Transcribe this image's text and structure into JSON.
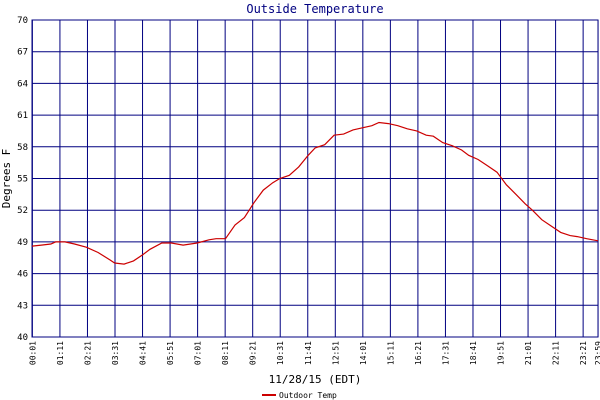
{
  "chart_data": {
    "type": "line",
    "title": "Outside Temperature",
    "ylabel": "Degrees F",
    "xlabel": "11/28/15 (EDT)",
    "ylim": [
      40,
      70
    ],
    "yticks": [
      40,
      43,
      46,
      49,
      52,
      55,
      58,
      61,
      64,
      67,
      70
    ],
    "xticks": [
      "00:01",
      "01:11",
      "02:21",
      "03:31",
      "04:41",
      "05:51",
      "07:01",
      "08:11",
      "09:21",
      "10:31",
      "11:41",
      "12:51",
      "14:01",
      "15:11",
      "16:21",
      "17:31",
      "18:41",
      "19:51",
      "21:01",
      "22:11",
      "23:21"
    ],
    "xtick_last": "23:59",
    "grid": true,
    "legend_position": "bottom",
    "colors": {
      "series": "#cc0000",
      "grid": "#000080",
      "title": "#000080"
    },
    "series": [
      {
        "name": "Outdoor Temp",
        "x": [
          0.0,
          0.4,
          0.8,
          1.0,
          1.4,
          1.8,
          2.3,
          2.8,
          3.3,
          3.5,
          3.9,
          4.3,
          4.7,
          5.0,
          5.5,
          5.9,
          6.4,
          7.0,
          7.5,
          7.8,
          8.2,
          8.6,
          9.0,
          9.4,
          9.8,
          10.2,
          10.5,
          10.9,
          11.3,
          11.7,
          12.0,
          12.4,
          12.8,
          13.2,
          13.6,
          14.0,
          14.4,
          14.7,
          15.1,
          15.5,
          15.9,
          16.3,
          16.7,
          17.0,
          17.4,
          17.8,
          18.2,
          18.5,
          18.9,
          19.3,
          19.7,
          20.1,
          20.5,
          20.9,
          21.2,
          21.6,
          22.0,
          22.4,
          22.8,
          23.1,
          23.5,
          23.98
        ],
        "y": [
          48.6,
          48.7,
          48.8,
          49.0,
          49.0,
          48.8,
          48.5,
          48.0,
          47.3,
          47.0,
          46.9,
          47.2,
          47.8,
          48.3,
          48.9,
          48.9,
          48.7,
          48.9,
          49.2,
          49.3,
          49.3,
          50.6,
          51.3,
          52.7,
          53.9,
          54.6,
          55.0,
          55.3,
          56.1,
          57.2,
          57.9,
          58.2,
          59.1,
          59.2,
          59.6,
          59.8,
          60.0,
          60.3,
          60.2,
          60.0,
          59.7,
          59.5,
          59.1,
          59.0,
          58.4,
          58.1,
          57.7,
          57.2,
          56.8,
          56.2,
          55.6,
          54.4,
          53.5,
          52.6,
          52.0,
          51.1,
          50.5,
          49.9,
          49.6,
          49.5,
          49.3,
          49.1
        ]
      }
    ]
  }
}
